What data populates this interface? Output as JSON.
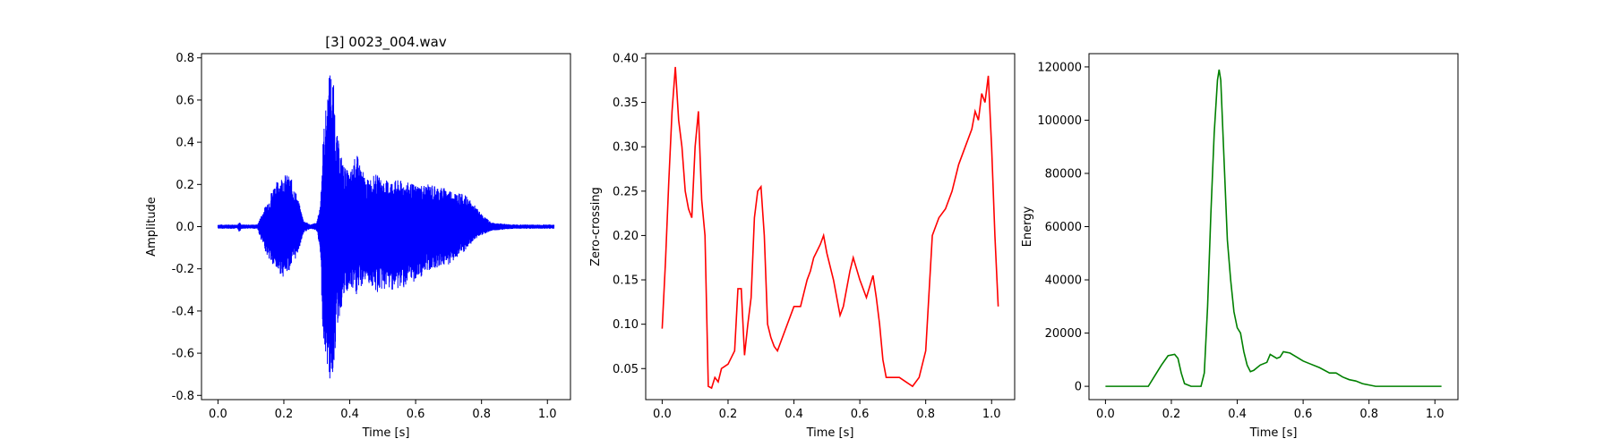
{
  "chart_data": [
    {
      "type": "line",
      "title": "[3] 0023_004.wav",
      "xlabel": "Time [s]",
      "ylabel": "Amplitude",
      "xlim": [
        -0.05,
        1.07
      ],
      "ylim": [
        -0.82,
        0.82
      ],
      "xticks": [
        0.0,
        0.2,
        0.4,
        0.6,
        0.8,
        1.0
      ],
      "yticks": [
        -0.8,
        -0.6,
        -0.4,
        -0.2,
        0.0,
        0.2,
        0.4,
        0.6,
        0.8
      ],
      "tick_decimals": [
        1,
        1
      ],
      "color": "#0000ff",
      "series": [
        {
          "envelope": true,
          "x": [
            0.0,
            0.06,
            0.065,
            0.07,
            0.12,
            0.13,
            0.15,
            0.17,
            0.2,
            0.22,
            0.24,
            0.26,
            0.28,
            0.3,
            0.31,
            0.32,
            0.33,
            0.34,
            0.35,
            0.36,
            0.38,
            0.4,
            0.42,
            0.45,
            0.48,
            0.5,
            0.55,
            0.6,
            0.65,
            0.7,
            0.75,
            0.78,
            0.8,
            0.83,
            0.86,
            0.9,
            0.95,
            1.0,
            1.02
          ],
          "upper": [
            0.01,
            0.01,
            0.03,
            0.01,
            0.01,
            0.05,
            0.12,
            0.2,
            0.25,
            0.24,
            0.15,
            0.03,
            0.01,
            0.02,
            0.1,
            0.45,
            0.6,
            0.76,
            0.7,
            0.45,
            0.3,
            0.25,
            0.35,
            0.22,
            0.25,
            0.22,
            0.22,
            0.2,
            0.2,
            0.18,
            0.15,
            0.1,
            0.06,
            0.02,
            0.015,
            0.01,
            0.01,
            0.01,
            0.01
          ],
          "lower": [
            -0.01,
            -0.01,
            -0.03,
            -0.01,
            -0.01,
            -0.06,
            -0.14,
            -0.2,
            -0.24,
            -0.2,
            -0.14,
            -0.03,
            -0.01,
            -0.02,
            -0.12,
            -0.55,
            -0.65,
            -0.75,
            -0.7,
            -0.5,
            -0.35,
            -0.3,
            -0.33,
            -0.25,
            -0.32,
            -0.3,
            -0.3,
            -0.26,
            -0.2,
            -0.18,
            -0.12,
            -0.06,
            -0.04,
            -0.02,
            -0.015,
            -0.01,
            -0.01,
            -0.01,
            -0.01
          ]
        }
      ]
    },
    {
      "type": "line",
      "title": "",
      "xlabel": "Time [s]",
      "ylabel": "Zero-crossing",
      "xlim": [
        -0.05,
        1.07
      ],
      "ylim": [
        0.015,
        0.405
      ],
      "xticks": [
        0.0,
        0.2,
        0.4,
        0.6,
        0.8,
        1.0
      ],
      "yticks": [
        0.05,
        0.1,
        0.15,
        0.2,
        0.25,
        0.3,
        0.35,
        0.4
      ],
      "tick_decimals": [
        1,
        2
      ],
      "color": "#ff0000",
      "series": [
        {
          "x": [
            0.0,
            0.01,
            0.02,
            0.03,
            0.04,
            0.05,
            0.06,
            0.07,
            0.08,
            0.09,
            0.1,
            0.11,
            0.12,
            0.13,
            0.14,
            0.15,
            0.16,
            0.17,
            0.18,
            0.2,
            0.22,
            0.23,
            0.24,
            0.25,
            0.26,
            0.27,
            0.28,
            0.29,
            0.3,
            0.31,
            0.32,
            0.33,
            0.34,
            0.35,
            0.36,
            0.38,
            0.4,
            0.42,
            0.44,
            0.45,
            0.46,
            0.48,
            0.49,
            0.5,
            0.52,
            0.54,
            0.55,
            0.57,
            0.58,
            0.6,
            0.62,
            0.64,
            0.65,
            0.66,
            0.67,
            0.68,
            0.7,
            0.72,
            0.74,
            0.76,
            0.78,
            0.8,
            0.82,
            0.83,
            0.84,
            0.86,
            0.88,
            0.9,
            0.92,
            0.94,
            0.95,
            0.96,
            0.97,
            0.98,
            0.99,
            1.0,
            1.01,
            1.02
          ],
          "y": [
            0.095,
            0.17,
            0.26,
            0.34,
            0.39,
            0.33,
            0.3,
            0.25,
            0.23,
            0.22,
            0.3,
            0.34,
            0.24,
            0.2,
            0.03,
            0.028,
            0.04,
            0.035,
            0.05,
            0.055,
            0.07,
            0.14,
            0.14,
            0.065,
            0.1,
            0.13,
            0.22,
            0.25,
            0.255,
            0.2,
            0.1,
            0.085,
            0.075,
            0.07,
            0.08,
            0.1,
            0.12,
            0.12,
            0.15,
            0.16,
            0.175,
            0.19,
            0.2,
            0.18,
            0.15,
            0.11,
            0.12,
            0.16,
            0.175,
            0.15,
            0.13,
            0.155,
            0.13,
            0.1,
            0.06,
            0.04,
            0.04,
            0.04,
            0.035,
            0.03,
            0.04,
            0.07,
            0.2,
            0.21,
            0.22,
            0.23,
            0.25,
            0.28,
            0.3,
            0.32,
            0.34,
            0.33,
            0.36,
            0.35,
            0.38,
            0.3,
            0.2,
            0.12
          ]
        }
      ]
    },
    {
      "type": "line",
      "title": "",
      "xlabel": "Time [s]",
      "ylabel": "Energy",
      "xlim": [
        -0.05,
        1.07
      ],
      "ylim": [
        -5000,
        125000
      ],
      "xticks": [
        0.0,
        0.2,
        0.4,
        0.6,
        0.8,
        1.0
      ],
      "yticks": [
        0,
        20000,
        40000,
        60000,
        80000,
        100000,
        120000
      ],
      "tick_decimals": [
        1,
        0
      ],
      "color": "#008000",
      "series": [
        {
          "x": [
            0.0,
            0.13,
            0.15,
            0.17,
            0.19,
            0.21,
            0.22,
            0.23,
            0.24,
            0.26,
            0.29,
            0.3,
            0.31,
            0.32,
            0.33,
            0.34,
            0.345,
            0.35,
            0.36,
            0.37,
            0.38,
            0.39,
            0.4,
            0.41,
            0.42,
            0.43,
            0.44,
            0.45,
            0.47,
            0.49,
            0.5,
            0.52,
            0.53,
            0.54,
            0.56,
            0.58,
            0.6,
            0.62,
            0.65,
            0.68,
            0.7,
            0.72,
            0.74,
            0.76,
            0.78,
            0.8,
            0.82,
            0.85,
            0.9,
            1.0,
            1.02
          ],
          "y": [
            0,
            0,
            4000,
            8000,
            11500,
            12000,
            10500,
            5000,
            1000,
            0,
            0,
            5000,
            30000,
            65000,
            95000,
            115000,
            119000,
            115000,
            85000,
            55000,
            40000,
            28000,
            22000,
            20000,
            13000,
            8000,
            5500,
            6000,
            8000,
            9000,
            12000,
            10500,
            11000,
            13000,
            12500,
            11000,
            9500,
            8500,
            7000,
            5000,
            5000,
            3500,
            2500,
            2000,
            1000,
            500,
            0,
            0,
            0,
            0,
            0
          ]
        }
      ]
    }
  ]
}
